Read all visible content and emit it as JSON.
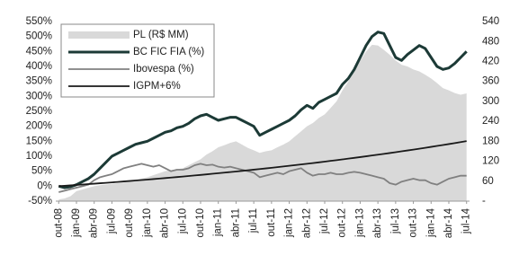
{
  "chart_data": {
    "type": "line",
    "categories": [
      "out-08",
      null,
      null,
      "jan-09",
      null,
      null,
      "abr-09",
      null,
      null,
      "jul-09",
      null,
      null,
      "out-09",
      null,
      null,
      "jan-10",
      null,
      null,
      "abr-10",
      null,
      null,
      "jul-10",
      null,
      null,
      "out-10",
      null,
      null,
      "jan-11",
      null,
      null,
      "abr-11",
      null,
      null,
      "jul-11",
      null,
      null,
      "out-11",
      null,
      null,
      "jan-12",
      null,
      null,
      "abr-12",
      null,
      null,
      "jul-12",
      null,
      null,
      "out-12",
      null,
      null,
      "jan-13",
      null,
      null,
      "abr-13",
      null,
      null,
      "jul-13",
      null,
      null,
      "out-13",
      null,
      null,
      "jan-14",
      null,
      null,
      "abr-14",
      null,
      null,
      "jul-14"
    ],
    "series": [
      {
        "name": "PL (R$ MM)",
        "type": "area",
        "axis": "y2",
        "color": "#d9d9d9",
        "values": [
          5,
          8,
          15,
          30,
          35,
          40,
          45,
          48,
          50,
          52,
          54,
          56,
          58,
          63,
          68,
          72,
          78,
          84,
          90,
          93,
          96,
          99,
          108,
          117,
          126,
          140,
          150,
          162,
          168,
          175,
          180,
          170,
          160,
          153,
          145,
          150,
          153,
          162,
          170,
          180,
          195,
          210,
          225,
          235,
          250,
          261,
          280,
          300,
          333,
          360,
          390,
          423,
          450,
          470,
          468,
          455,
          440,
          423,
          410,
          405,
          396,
          390,
          380,
          369,
          355,
          340,
          333,
          325,
          320,
          324
        ]
      },
      {
        "name": "BC FIC FIA (%)",
        "color": "#1c3a36",
        "width": 3,
        "values": [
          0,
          -5,
          -2,
          5,
          15,
          25,
          40,
          60,
          80,
          100,
          110,
          120,
          130,
          140,
          145,
          150,
          160,
          170,
          180,
          185,
          195,
          200,
          210,
          225,
          235,
          240,
          230,
          220,
          225,
          230,
          230,
          220,
          210,
          200,
          170,
          180,
          190,
          200,
          210,
          220,
          235,
          255,
          270,
          260,
          280,
          290,
          300,
          310,
          340,
          360,
          390,
          430,
          470,
          500,
          515,
          510,
          470,
          430,
          420,
          440,
          455,
          470,
          460,
          430,
          400,
          390,
          395,
          410,
          430,
          450
        ]
      },
      {
        "name": "Ibovespa (%)",
        "color": "#808080",
        "width": 1.8,
        "values": [
          -20,
          -15,
          -10,
          -5,
          0,
          5,
          20,
          30,
          35,
          40,
          50,
          60,
          65,
          70,
          75,
          70,
          65,
          70,
          60,
          50,
          55,
          55,
          60,
          70,
          75,
          70,
          72,
          65,
          62,
          65,
          60,
          55,
          50,
          45,
          30,
          35,
          40,
          45,
          40,
          50,
          55,
          60,
          45,
          35,
          40,
          40,
          45,
          40,
          40,
          45,
          48,
          45,
          40,
          35,
          30,
          25,
          10,
          5,
          15,
          20,
          25,
          20,
          20,
          10,
          5,
          15,
          25,
          30,
          35,
          35
        ]
      },
      {
        "name": "IGPM+6%",
        "color": "#1a1a1a",
        "width": 1.8,
        "values": [
          0,
          1.3,
          2.7,
          4.1,
          5.5,
          6.9,
          8.3,
          9.8,
          11.2,
          12.7,
          14.2,
          15.8,
          17.3,
          18.9,
          20.5,
          22.1,
          23.7,
          25.4,
          27.0,
          28.8,
          30.5,
          32.2,
          34.0,
          35.9,
          37.6,
          39.5,
          41.4,
          43.3,
          45.2,
          47.1,
          49.1,
          51.1,
          53.1,
          55.2,
          57.2,
          59.3,
          61.5,
          63.6,
          65.8,
          68.1,
          70.3,
          72.6,
          74.9,
          77.2,
          79.6,
          82.0,
          84.5,
          86.9,
          89.4,
          92.0,
          94.6,
          97.2,
          99.8,
          102.5,
          105.2,
          107.9,
          110.7,
          113.5,
          116.4,
          119.3,
          122.2,
          125.2,
          128.2,
          131.3,
          134.4,
          137.5,
          140.7,
          143.9,
          147.2,
          150.5
        ]
      }
    ],
    "ylim": [
      -50,
      550
    ],
    "yticks": [
      {
        "value": -50,
        "label": "-50%"
      },
      {
        "value": 0,
        "label": "0%"
      },
      {
        "value": 50,
        "label": "50%"
      },
      {
        "value": 100,
        "label": "100%"
      },
      {
        "value": 150,
        "label": "150%"
      },
      {
        "value": 200,
        "label": "200%"
      },
      {
        "value": 250,
        "label": "250%"
      },
      {
        "value": 300,
        "label": "300%"
      },
      {
        "value": 350,
        "label": "350%"
      },
      {
        "value": 400,
        "label": "400%"
      },
      {
        "value": 450,
        "label": "450%"
      },
      {
        "value": 500,
        "label": "500%"
      },
      {
        "value": 550,
        "label": "550%"
      }
    ],
    "y2lim": [
      0,
      540
    ],
    "y2ticks": [
      {
        "value": 0,
        "label": "-"
      },
      60,
      120,
      180,
      240,
      300,
      360,
      420,
      480,
      540
    ],
    "legend": "upper left"
  }
}
